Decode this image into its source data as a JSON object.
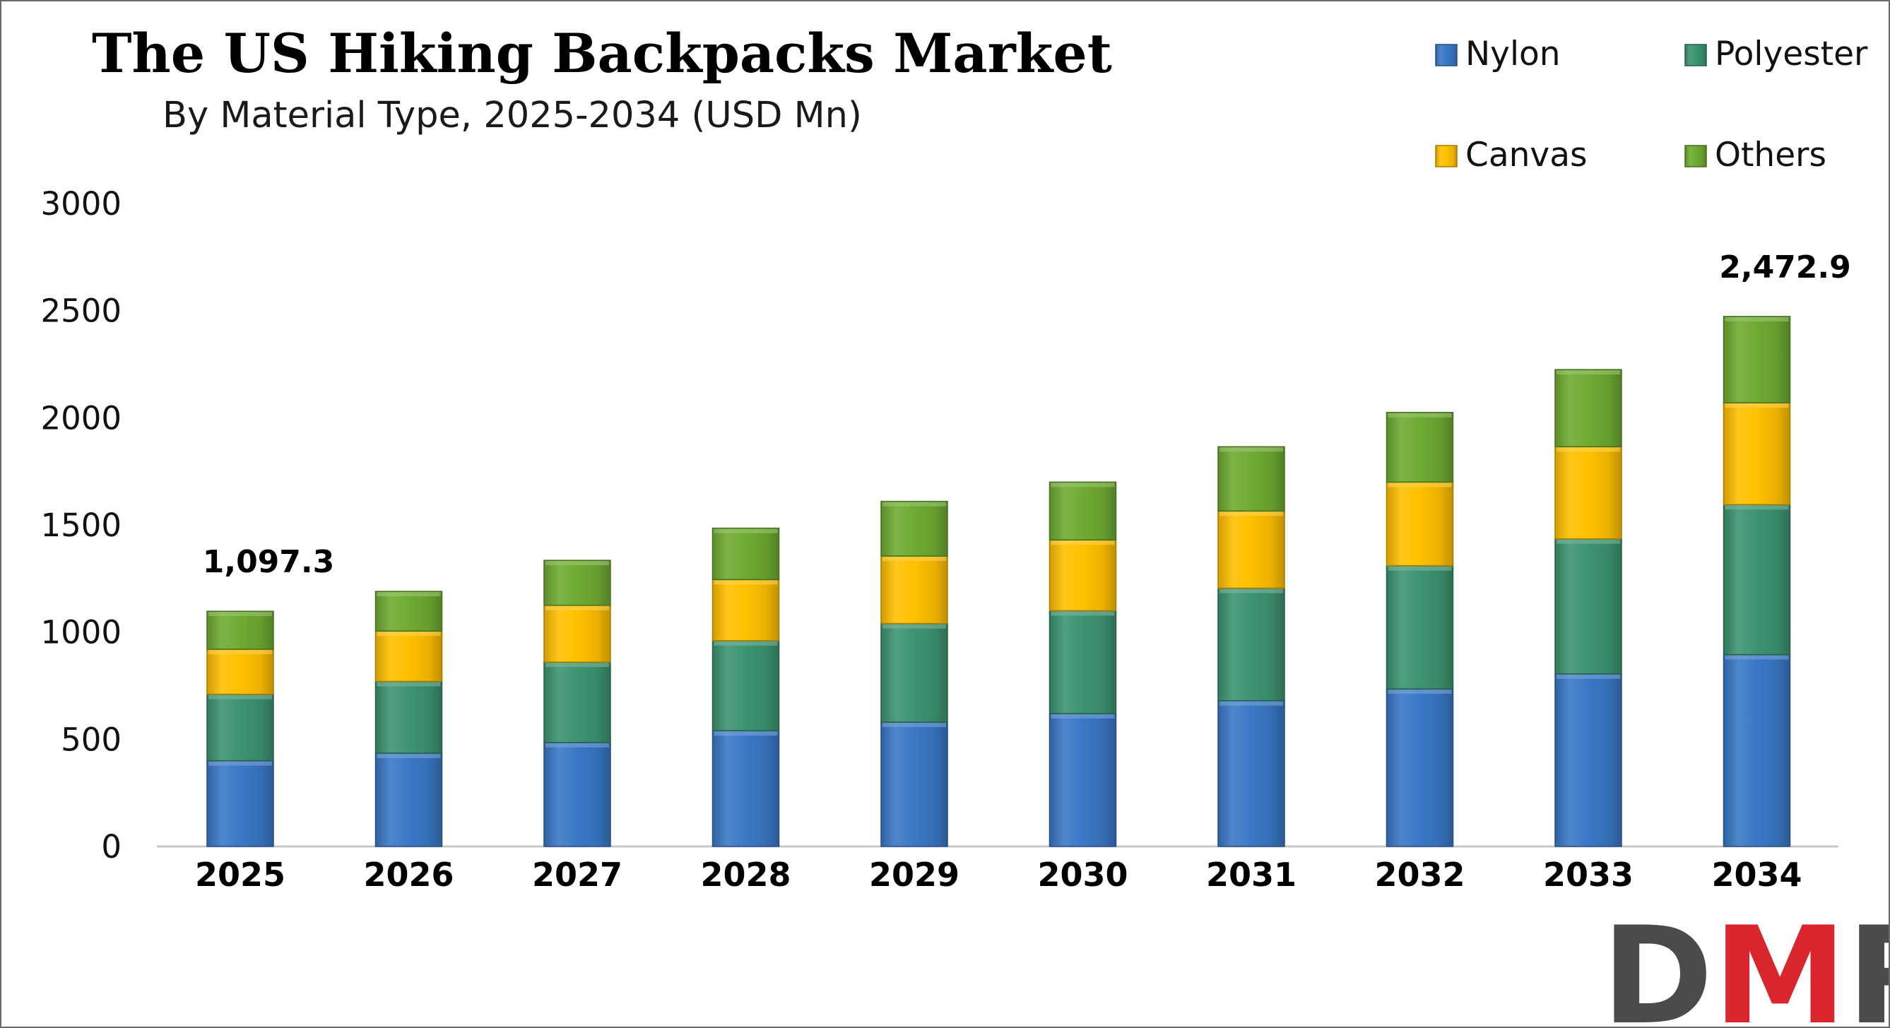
{
  "chart_data": {
    "type": "bar",
    "stacked": true,
    "title": "The US Hiking Backpacks Market",
    "subtitle": "By Material Type, 2025-2034 (USD Mn)",
    "categories": [
      "2025",
      "2026",
      "2027",
      "2028",
      "2029",
      "2030",
      "2031",
      "2032",
      "2033",
      "2034"
    ],
    "series": [
      {
        "name": "Nylon",
        "color": "#3a78c6",
        "values": [
          400,
          435,
          485,
          540,
          580,
          620,
          680,
          735,
          805,
          895
        ]
      },
      {
        "name": "Polyester",
        "color": "#3d9470",
        "values": [
          310,
          335,
          375,
          420,
          460,
          480,
          525,
          575,
          630,
          700
        ]
      },
      {
        "name": "Canvas",
        "color": "#ffc000",
        "values": [
          210,
          235,
          265,
          285,
          315,
          330,
          360,
          390,
          430,
          475
        ]
      },
      {
        "name": "Others",
        "color": "#6fab32",
        "values": [
          177.3,
          185,
          210,
          240,
          255,
          270,
          300,
          325,
          360,
          402.9
        ]
      }
    ],
    "totals_labels": [
      {
        "category": "2025",
        "text": "1,097.3"
      },
      {
        "category": "2034",
        "text": "2,472.9"
      }
    ],
    "ylim": [
      0,
      3000
    ],
    "yticks": [
      "0",
      "500",
      "1000",
      "1500",
      "2000",
      "2500",
      "3000"
    ],
    "ytick_values": [
      0,
      500,
      1000,
      1500,
      2000,
      2500,
      3000
    ],
    "xlabel": "",
    "ylabel": "",
    "grid": false,
    "legend_position": "top-right"
  },
  "logo": {
    "text": "DMR",
    "color_d": "#4b4b4b",
    "color_m": "#d9262c",
    "color_r": "#4b4b4b"
  }
}
